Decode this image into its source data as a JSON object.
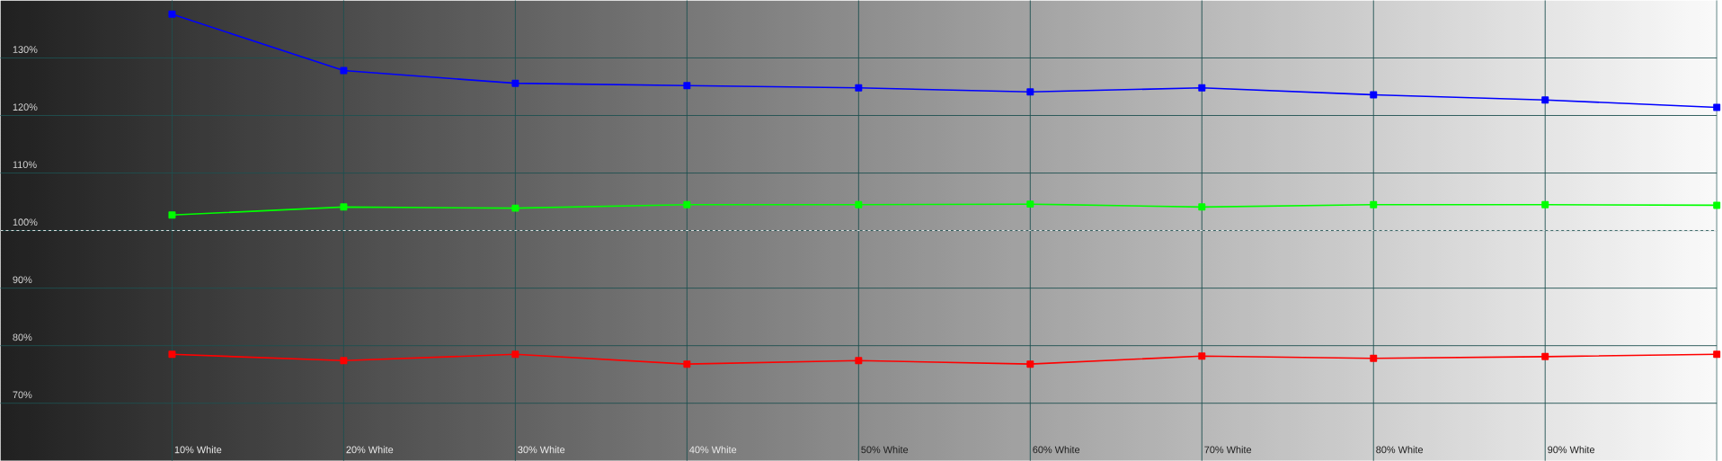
{
  "chart_data": {
    "type": "line",
    "categories": [
      "10% White",
      "20% White",
      "30% White",
      "40% White",
      "50% White",
      "60% White",
      "70% White",
      "80% White",
      "90% White",
      null
    ],
    "series": [
      {
        "color": "#0000ff",
        "values": [
          137.6,
          127.8,
          125.6,
          125.2,
          124.8,
          124.1,
          124.8,
          123.6,
          122.7,
          121.4
        ]
      },
      {
        "color": "#00ff00",
        "values": [
          102.7,
          104.1,
          103.9,
          104.5,
          104.5,
          104.6,
          104.1,
          104.5,
          104.5,
          104.4
        ]
      },
      {
        "color": "#ff0000",
        "values": [
          78.5,
          77.4,
          78.5,
          76.8,
          77.4,
          76.8,
          78.2,
          77.8,
          78.1,
          78.5
        ]
      }
    ],
    "ylim": [
      60,
      140
    ],
    "yticks": [
      {
        "value": 70,
        "label": "70%"
      },
      {
        "value": 80,
        "label": "80%"
      },
      {
        "value": 90,
        "label": "90%"
      },
      {
        "value": 100,
        "label": "100%"
      },
      {
        "value": 110,
        "label": "110%"
      },
      {
        "value": 120,
        "label": "120%"
      },
      {
        "value": 130,
        "label": "130%"
      }
    ],
    "ref_lines": [
      {
        "axis": "y",
        "value": 100,
        "color": "#ffffff",
        "line_style": "dashed"
      }
    ],
    "grid": true,
    "marker": "square",
    "line_style": "solid"
  }
}
